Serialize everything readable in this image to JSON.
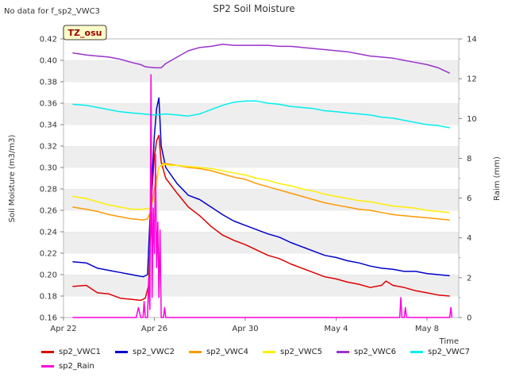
{
  "page": {
    "nodata_text": "No data for f_sp2_VWC3"
  },
  "chart_data": {
    "type": "line",
    "title": "SP2 Soil Moisture",
    "badge": "TZ_osu",
    "xlabel": "Time",
    "ylabel": "Soil Moisture (m3/m3)",
    "y2label": "Raim (mm)",
    "x_ticks": [
      "Apr 22",
      "Apr 26",
      "Apr 30",
      "May 4",
      "May 8"
    ],
    "y_ticks": [
      "0.16",
      "0.18",
      "0.20",
      "0.22",
      "0.24",
      "0.26",
      "0.28",
      "0.30",
      "0.32",
      "0.34",
      "0.36",
      "0.38",
      "0.40",
      "0.42"
    ],
    "y2_ticks": [
      "0",
      "2",
      "4",
      "6",
      "8",
      "10",
      "12",
      "14"
    ],
    "x_range_days": [
      0,
      17.4
    ],
    "ylim": [
      0.16,
      0.42
    ],
    "y2lim": [
      0,
      14
    ],
    "grid": "horizontal bands",
    "legend_position": "bottom",
    "series": [
      {
        "name": "sp2_VWC1",
        "color": "#dd0000",
        "axis": "left",
        "points": [
          [
            0.4,
            0.189
          ],
          [
            1.0,
            0.19
          ],
          [
            1.5,
            0.183
          ],
          [
            2.0,
            0.182
          ],
          [
            2.5,
            0.178
          ],
          [
            3.0,
            0.177
          ],
          [
            3.4,
            0.176
          ],
          [
            3.6,
            0.178
          ],
          [
            3.75,
            0.19
          ],
          [
            3.85,
            0.25
          ],
          [
            3.9,
            0.28
          ],
          [
            4.0,
            0.31
          ],
          [
            4.1,
            0.325
          ],
          [
            4.2,
            0.33
          ],
          [
            4.3,
            0.305
          ],
          [
            4.5,
            0.29
          ],
          [
            5.0,
            0.276
          ],
          [
            5.5,
            0.263
          ],
          [
            6.0,
            0.255
          ],
          [
            6.5,
            0.245
          ],
          [
            7.0,
            0.237
          ],
          [
            7.5,
            0.232
          ],
          [
            8.0,
            0.228
          ],
          [
            8.5,
            0.223
          ],
          [
            9.0,
            0.218
          ],
          [
            9.5,
            0.215
          ],
          [
            10.0,
            0.21
          ],
          [
            10.5,
            0.206
          ],
          [
            11.0,
            0.202
          ],
          [
            11.5,
            0.198
          ],
          [
            12.0,
            0.196
          ],
          [
            12.5,
            0.193
          ],
          [
            13.0,
            0.191
          ],
          [
            13.5,
            0.188
          ],
          [
            14.0,
            0.19
          ],
          [
            14.2,
            0.194
          ],
          [
            14.5,
            0.19
          ],
          [
            15.0,
            0.188
          ],
          [
            15.5,
            0.185
          ],
          [
            16.0,
            0.183
          ],
          [
            16.5,
            0.181
          ],
          [
            17.0,
            0.18
          ]
        ]
      },
      {
        "name": "sp2_VWC2",
        "color": "#0000cc",
        "axis": "left",
        "points": [
          [
            0.4,
            0.212
          ],
          [
            1.0,
            0.211
          ],
          [
            1.5,
            0.206
          ],
          [
            2.0,
            0.204
          ],
          [
            2.5,
            0.202
          ],
          [
            3.0,
            0.2
          ],
          [
            3.5,
            0.198
          ],
          [
            3.7,
            0.2
          ],
          [
            3.8,
            0.25
          ],
          [
            3.9,
            0.29
          ],
          [
            4.0,
            0.33
          ],
          [
            4.1,
            0.355
          ],
          [
            4.2,
            0.365
          ],
          [
            4.3,
            0.32
          ],
          [
            4.5,
            0.3
          ],
          [
            5.0,
            0.285
          ],
          [
            5.5,
            0.274
          ],
          [
            6.0,
            0.27
          ],
          [
            6.5,
            0.263
          ],
          [
            7.0,
            0.256
          ],
          [
            7.5,
            0.25
          ],
          [
            8.0,
            0.246
          ],
          [
            8.5,
            0.242
          ],
          [
            9.0,
            0.238
          ],
          [
            9.5,
            0.235
          ],
          [
            10.0,
            0.23
          ],
          [
            10.5,
            0.226
          ],
          [
            11.0,
            0.222
          ],
          [
            11.5,
            0.218
          ],
          [
            12.0,
            0.216
          ],
          [
            12.5,
            0.213
          ],
          [
            13.0,
            0.211
          ],
          [
            13.5,
            0.208
          ],
          [
            14.0,
            0.206
          ],
          [
            14.5,
            0.205
          ],
          [
            15.0,
            0.203
          ],
          [
            15.5,
            0.203
          ],
          [
            16.0,
            0.201
          ],
          [
            16.5,
            0.2
          ],
          [
            17.0,
            0.199
          ]
        ]
      },
      {
        "name": "sp2_VWC4",
        "color": "#ff9900",
        "axis": "left",
        "points": [
          [
            0.4,
            0.263
          ],
          [
            1.0,
            0.261
          ],
          [
            1.5,
            0.259
          ],
          [
            2.0,
            0.256
          ],
          [
            2.5,
            0.254
          ],
          [
            3.0,
            0.252
          ],
          [
            3.5,
            0.251
          ],
          [
            3.7,
            0.252
          ],
          [
            3.85,
            0.26
          ],
          [
            4.0,
            0.28
          ],
          [
            4.2,
            0.3
          ],
          [
            4.4,
            0.304
          ],
          [
            4.7,
            0.303
          ],
          [
            5.0,
            0.302
          ],
          [
            5.5,
            0.3
          ],
          [
            6.0,
            0.299
          ],
          [
            6.5,
            0.297
          ],
          [
            7.0,
            0.294
          ],
          [
            7.5,
            0.291
          ],
          [
            8.0,
            0.289
          ],
          [
            8.5,
            0.285
          ],
          [
            9.0,
            0.282
          ],
          [
            9.5,
            0.279
          ],
          [
            10.0,
            0.276
          ],
          [
            10.5,
            0.273
          ],
          [
            11.0,
            0.27
          ],
          [
            11.5,
            0.267
          ],
          [
            12.0,
            0.265
          ],
          [
            12.5,
            0.263
          ],
          [
            13.0,
            0.261
          ],
          [
            13.5,
            0.26
          ],
          [
            14.0,
            0.258
          ],
          [
            14.5,
            0.256
          ],
          [
            15.0,
            0.255
          ],
          [
            15.5,
            0.254
          ],
          [
            16.0,
            0.253
          ],
          [
            16.5,
            0.252
          ],
          [
            17.0,
            0.251
          ]
        ]
      },
      {
        "name": "sp2_VWC5",
        "color": "#ffee00",
        "axis": "left",
        "points": [
          [
            0.4,
            0.273
          ],
          [
            1.0,
            0.271
          ],
          [
            1.5,
            0.268
          ],
          [
            2.0,
            0.265
          ],
          [
            2.5,
            0.263
          ],
          [
            3.0,
            0.261
          ],
          [
            3.5,
            0.261
          ],
          [
            3.8,
            0.262
          ],
          [
            4.0,
            0.27
          ],
          [
            4.2,
            0.3
          ],
          [
            4.4,
            0.303
          ],
          [
            4.7,
            0.302
          ],
          [
            5.0,
            0.302
          ],
          [
            5.5,
            0.301
          ],
          [
            6.0,
            0.3
          ],
          [
            6.5,
            0.299
          ],
          [
            7.0,
            0.297
          ],
          [
            7.5,
            0.295
          ],
          [
            8.0,
            0.293
          ],
          [
            8.5,
            0.29
          ],
          [
            9.0,
            0.288
          ],
          [
            9.5,
            0.285
          ],
          [
            10.0,
            0.283
          ],
          [
            10.5,
            0.28
          ],
          [
            11.0,
            0.278
          ],
          [
            11.5,
            0.275
          ],
          [
            12.0,
            0.273
          ],
          [
            12.5,
            0.271
          ],
          [
            13.0,
            0.269
          ],
          [
            13.5,
            0.268
          ],
          [
            14.0,
            0.266
          ],
          [
            14.5,
            0.264
          ],
          [
            15.0,
            0.263
          ],
          [
            15.5,
            0.262
          ],
          [
            16.0,
            0.26
          ],
          [
            16.5,
            0.259
          ],
          [
            17.0,
            0.258
          ]
        ]
      },
      {
        "name": "sp2_VWC6",
        "color": "#9933cc",
        "axis": "left",
        "points": [
          [
            0.4,
            0.407
          ],
          [
            1.0,
            0.405
          ],
          [
            1.5,
            0.404
          ],
          [
            2.0,
            0.403
          ],
          [
            2.5,
            0.401
          ],
          [
            3.0,
            0.398
          ],
          [
            3.4,
            0.396
          ],
          [
            3.6,
            0.394
          ],
          [
            4.0,
            0.393
          ],
          [
            4.3,
            0.393
          ],
          [
            4.5,
            0.397
          ],
          [
            5.0,
            0.403
          ],
          [
            5.5,
            0.409
          ],
          [
            6.0,
            0.412
          ],
          [
            6.5,
            0.413
          ],
          [
            7.0,
            0.415
          ],
          [
            7.5,
            0.414
          ],
          [
            8.0,
            0.414
          ],
          [
            8.5,
            0.414
          ],
          [
            9.0,
            0.414
          ],
          [
            9.5,
            0.413
          ],
          [
            10.0,
            0.413
          ],
          [
            10.5,
            0.412
          ],
          [
            11.0,
            0.411
          ],
          [
            11.5,
            0.41
          ],
          [
            12.0,
            0.409
          ],
          [
            12.5,
            0.408
          ],
          [
            13.0,
            0.406
          ],
          [
            13.5,
            0.404
          ],
          [
            14.0,
            0.403
          ],
          [
            14.5,
            0.402
          ],
          [
            15.0,
            0.4
          ],
          [
            15.5,
            0.398
          ],
          [
            16.0,
            0.396
          ],
          [
            16.5,
            0.393
          ],
          [
            17.0,
            0.388
          ]
        ]
      },
      {
        "name": "sp2_VWC7",
        "color": "#00eeee",
        "axis": "left",
        "points": [
          [
            0.4,
            0.359
          ],
          [
            1.0,
            0.358
          ],
          [
            1.5,
            0.356
          ],
          [
            2.0,
            0.354
          ],
          [
            2.5,
            0.352
          ],
          [
            3.0,
            0.351
          ],
          [
            3.5,
            0.35
          ],
          [
            4.0,
            0.349
          ],
          [
            4.5,
            0.35
          ],
          [
            5.0,
            0.349
          ],
          [
            5.5,
            0.348
          ],
          [
            6.0,
            0.35
          ],
          [
            6.5,
            0.354
          ],
          [
            7.0,
            0.358
          ],
          [
            7.5,
            0.361
          ],
          [
            8.0,
            0.362
          ],
          [
            8.5,
            0.362
          ],
          [
            9.0,
            0.36
          ],
          [
            9.5,
            0.359
          ],
          [
            10.0,
            0.357
          ],
          [
            10.5,
            0.356
          ],
          [
            11.0,
            0.355
          ],
          [
            11.5,
            0.353
          ],
          [
            12.0,
            0.352
          ],
          [
            12.5,
            0.351
          ],
          [
            13.0,
            0.35
          ],
          [
            13.5,
            0.349
          ],
          [
            14.0,
            0.347
          ],
          [
            14.5,
            0.346
          ],
          [
            15.0,
            0.344
          ],
          [
            15.5,
            0.342
          ],
          [
            16.0,
            0.34
          ],
          [
            16.5,
            0.339
          ],
          [
            17.0,
            0.337
          ]
        ]
      },
      {
        "name": "sp2_Rain",
        "color": "#ff00dd",
        "axis": "right",
        "points": [
          [
            0.4,
            0
          ],
          [
            3.2,
            0
          ],
          [
            3.3,
            0.5
          ],
          [
            3.4,
            0
          ],
          [
            3.5,
            0
          ],
          [
            3.55,
            0.8
          ],
          [
            3.6,
            0
          ],
          [
            3.7,
            0
          ],
          [
            3.75,
            2.0
          ],
          [
            3.8,
            0.4
          ],
          [
            3.85,
            12.2
          ],
          [
            3.9,
            1.0
          ],
          [
            3.95,
            5.5
          ],
          [
            4.0,
            3.2
          ],
          [
            4.05,
            8.2
          ],
          [
            4.1,
            2.5
          ],
          [
            4.15,
            4.8
          ],
          [
            4.2,
            1.0
          ],
          [
            4.25,
            4.4
          ],
          [
            4.3,
            0
          ],
          [
            4.4,
            0
          ],
          [
            4.45,
            0.5
          ],
          [
            4.5,
            0
          ],
          [
            14.8,
            0
          ],
          [
            14.85,
            1.0
          ],
          [
            14.9,
            0
          ],
          [
            15.0,
            0
          ],
          [
            15.05,
            0.5
          ],
          [
            15.1,
            0
          ],
          [
            17.0,
            0
          ],
          [
            17.05,
            0.5
          ],
          [
            17.1,
            0
          ]
        ]
      }
    ]
  }
}
